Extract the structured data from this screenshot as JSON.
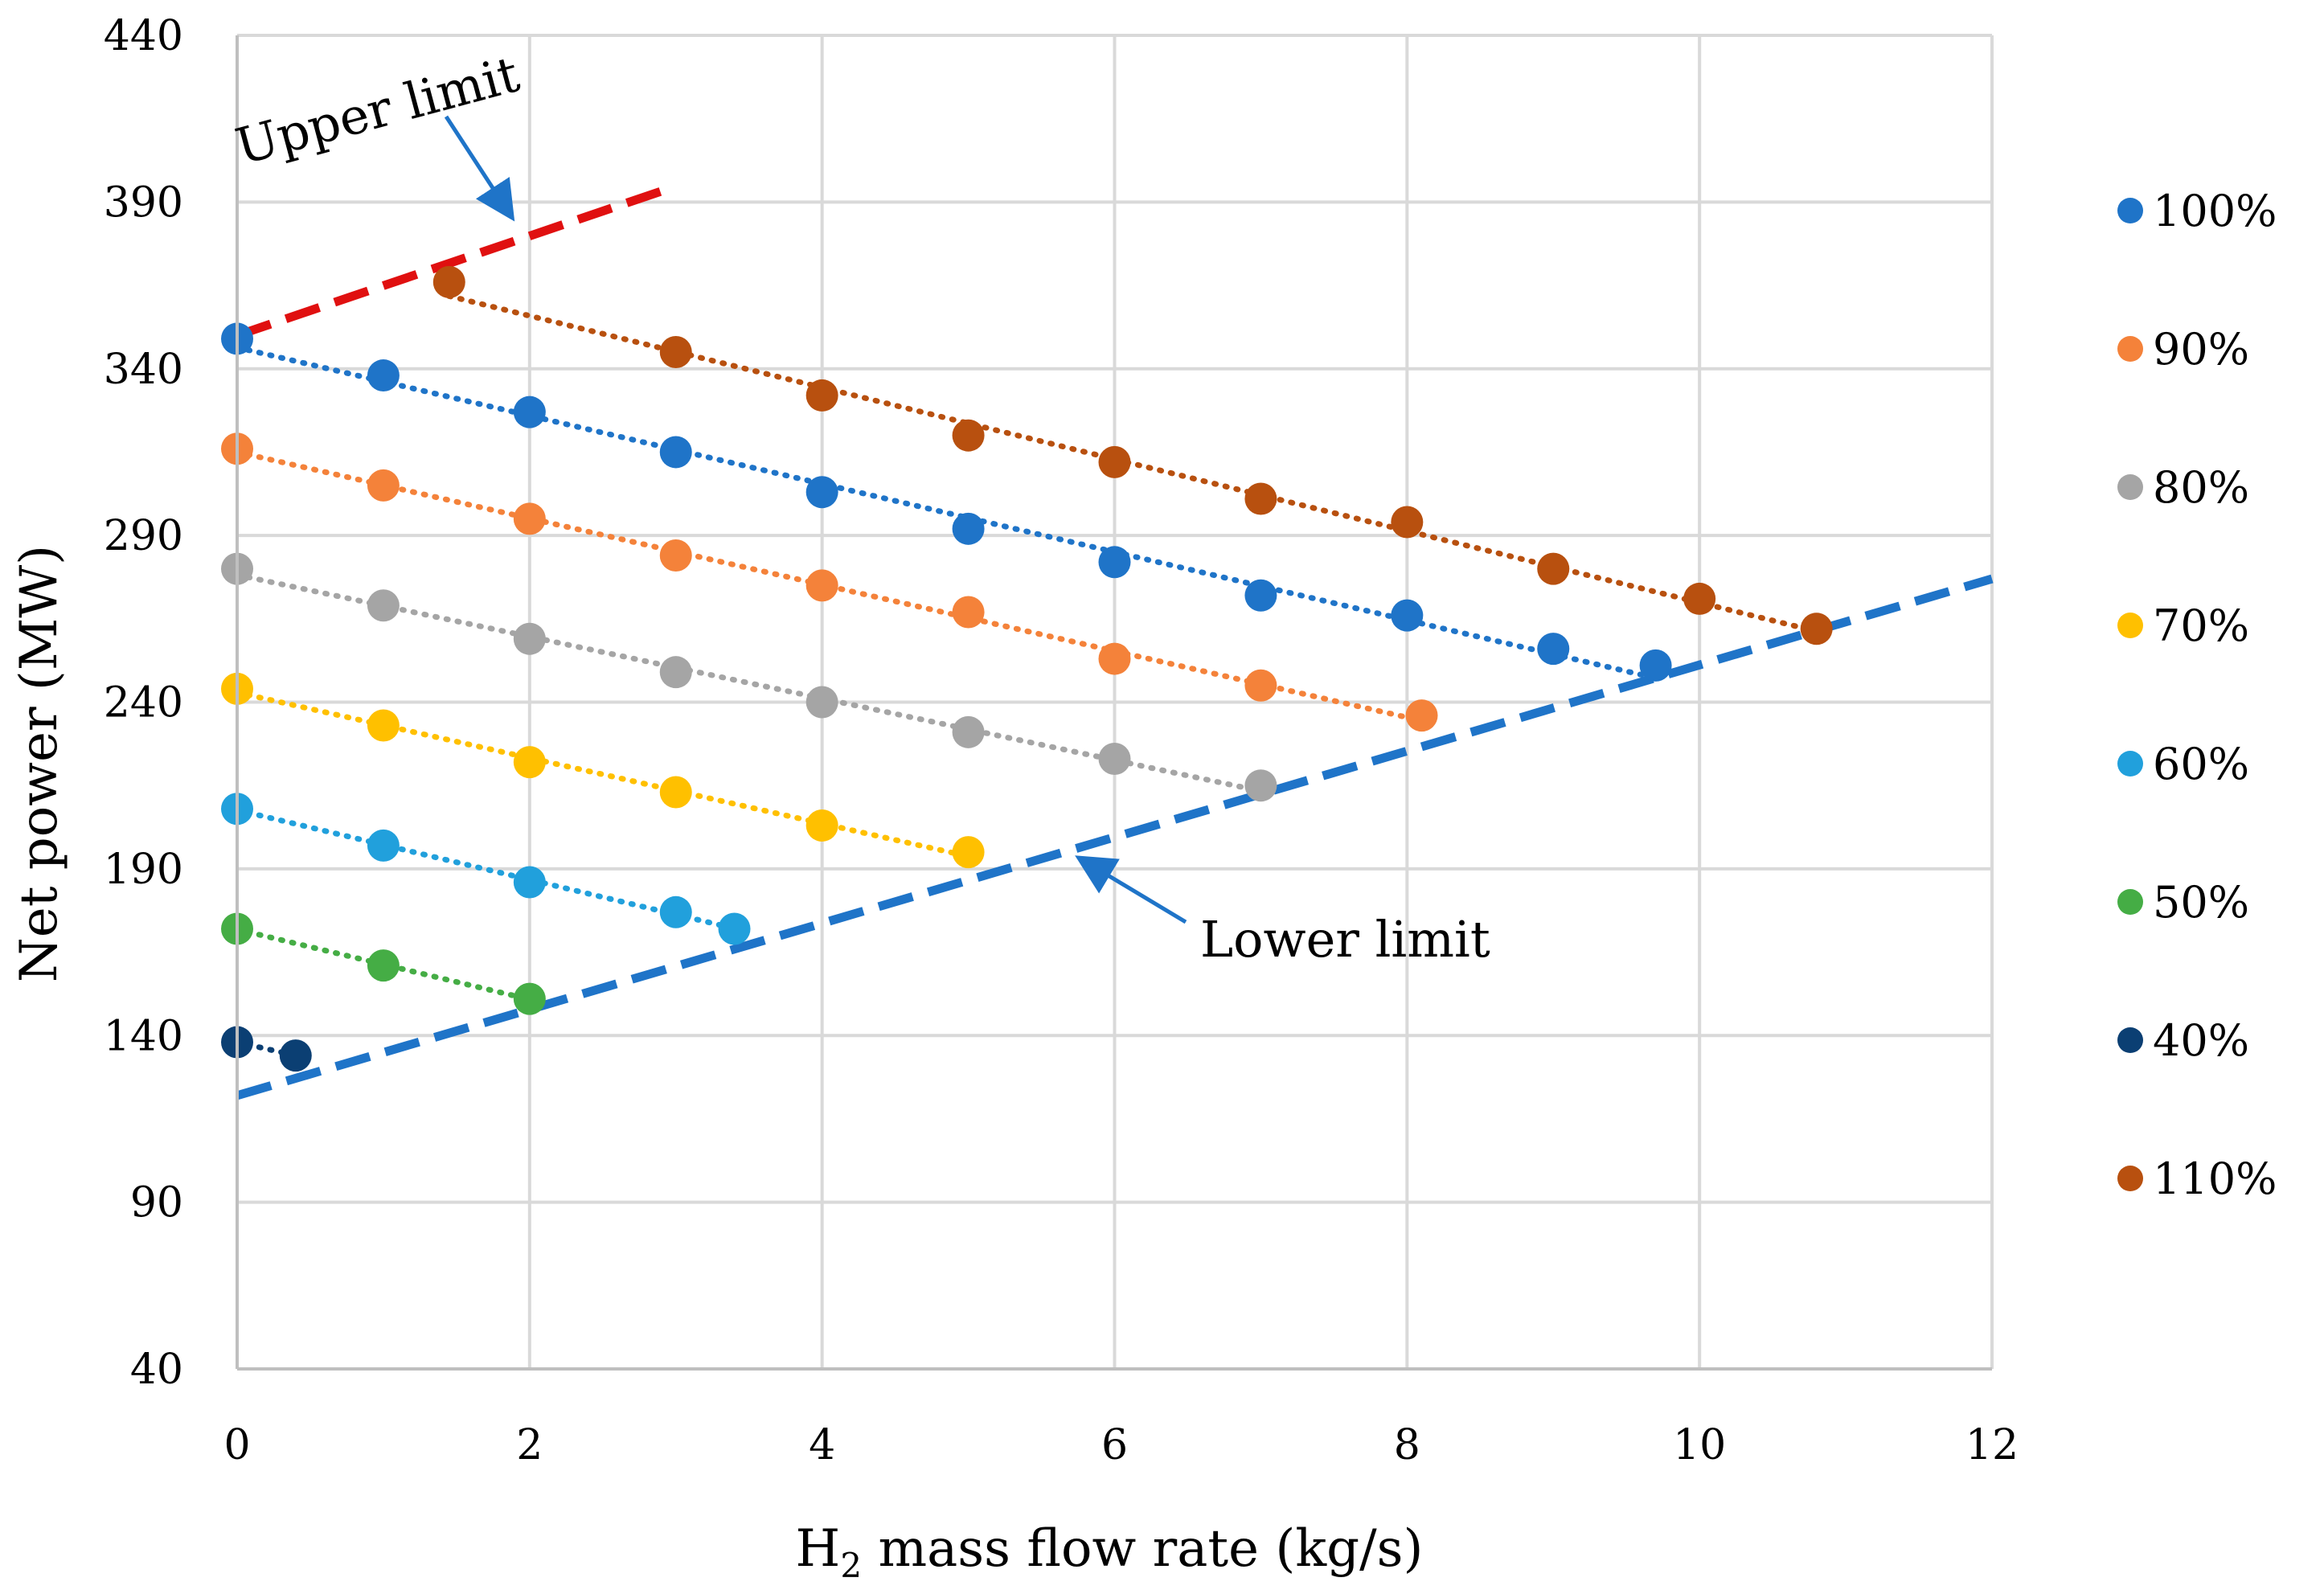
{
  "chart_data": {
    "type": "scatter",
    "xlabel": {
      "main": "H",
      "sub": "2",
      "rest": " mass flow rate (kg/s)"
    },
    "ylabel": "Net power (MW)",
    "xlim": [
      0,
      12
    ],
    "ylim": [
      40,
      440
    ],
    "xticks": [
      0,
      2,
      4,
      6,
      8,
      10,
      12
    ],
    "yticks": [
      40,
      90,
      140,
      190,
      240,
      290,
      340,
      390,
      440
    ],
    "grid": true,
    "legend_position": "right",
    "series": [
      {
        "name": "100%",
        "color": "#1f74c8",
        "x": [
          0,
          1,
          2,
          3,
          4,
          5,
          6,
          7,
          8,
          9,
          9.7
        ],
        "y": [
          349,
          338,
          327,
          315,
          303,
          292,
          282,
          272,
          266,
          256,
          251
        ]
      },
      {
        "name": "90%",
        "color": "#f4823a",
        "x": [
          0,
          1,
          2,
          3,
          4,
          5,
          6,
          7,
          8.1
        ],
        "y": [
          316,
          305,
          295,
          284,
          275,
          267,
          253,
          245,
          236
        ]
      },
      {
        "name": "80%",
        "color": "#a5a5a5",
        "x": [
          0,
          1,
          2,
          3,
          4,
          5,
          6,
          7
        ],
        "y": [
          280,
          269,
          259,
          249,
          240,
          231,
          223,
          215
        ]
      },
      {
        "name": "70%",
        "color": "#ffc000",
        "x": [
          0,
          1,
          2,
          3,
          4,
          5
        ],
        "y": [
          244,
          233,
          222,
          213,
          203,
          195
        ]
      },
      {
        "name": "60%",
        "color": "#21a0dc",
        "x": [
          0,
          1,
          2,
          3,
          3.4
        ],
        "y": [
          208,
          197,
          186,
          177,
          172
        ]
      },
      {
        "name": "50%",
        "color": "#45ad45",
        "x": [
          0,
          1,
          2
        ],
        "y": [
          172,
          161,
          151
        ]
      },
      {
        "name": "40%",
        "color": "#0b3f73",
        "x": [
          0,
          0.4
        ],
        "y": [
          138,
          134
        ]
      },
      {
        "name": "110%",
        "color": "#b8500f",
        "x": [
          1.45,
          3,
          4,
          5,
          6,
          7,
          8,
          9,
          10,
          10.8
        ],
        "y": [
          366,
          345,
          332,
          320,
          312,
          301,
          294,
          280,
          271,
          262
        ]
      }
    ],
    "limit_lines": [
      {
        "name": "Upper limit",
        "color": "#e01010",
        "x": [
          0,
          2.95
        ],
        "y": [
          350,
          394
        ]
      },
      {
        "name": "Lower limit",
        "color": "#1f74c8",
        "x": [
          0,
          12
        ],
        "y": [
          122,
          277
        ]
      }
    ],
    "annotations": [
      {
        "text": "Upper limit",
        "points_to": "upper-limit-line"
      },
      {
        "text": "Lower limit",
        "points_to": "lower-limit-line"
      }
    ]
  }
}
